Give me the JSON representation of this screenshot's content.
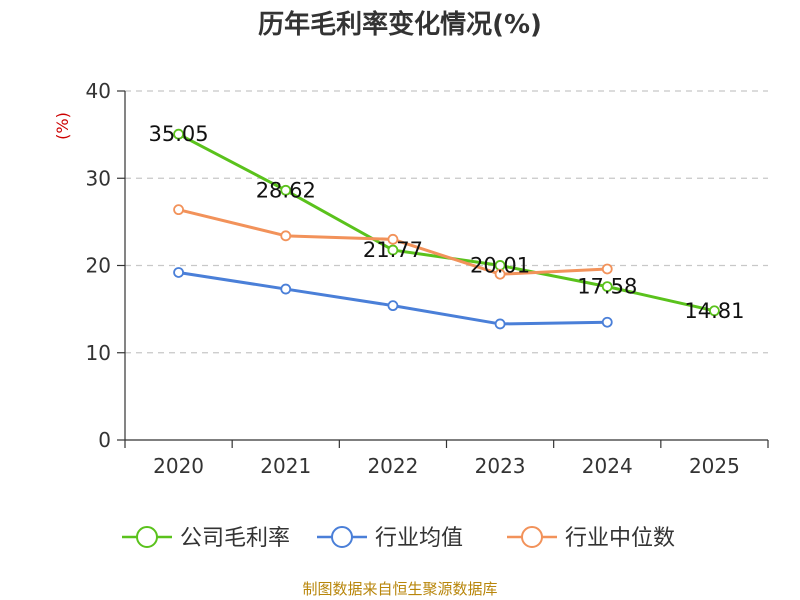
{
  "source_note": "制图数据来自恒生聚源数据库",
  "chart_data": {
    "type": "line",
    "title": "历年毛利率变化情况(%)",
    "ylabel": "(%)",
    "xlabel": "",
    "categories": [
      "2020",
      "2021",
      "2022",
      "2023",
      "2024",
      "2025"
    ],
    "ylim": [
      0,
      40
    ],
    "yticks": [
      0,
      10,
      20,
      30,
      40
    ],
    "grid": true,
    "legend_position": "bottom",
    "series": [
      {
        "name": "公司毛利率",
        "color": "#5ac21c",
        "values": [
          35.05,
          28.62,
          21.77,
          20.01,
          17.58,
          14.81
        ],
        "labels": [
          "35.05",
          "28.62",
          "21.77",
          "20.01",
          "17.58",
          "14.81"
        ]
      },
      {
        "name": "行业均值",
        "color": "#4a7fd8",
        "values": [
          19.2,
          17.3,
          15.4,
          13.3,
          13.5,
          null
        ]
      },
      {
        "name": "行业中位数",
        "color": "#f2925a",
        "values": [
          26.4,
          23.4,
          23.0,
          19.0,
          19.6,
          null
        ]
      }
    ]
  }
}
